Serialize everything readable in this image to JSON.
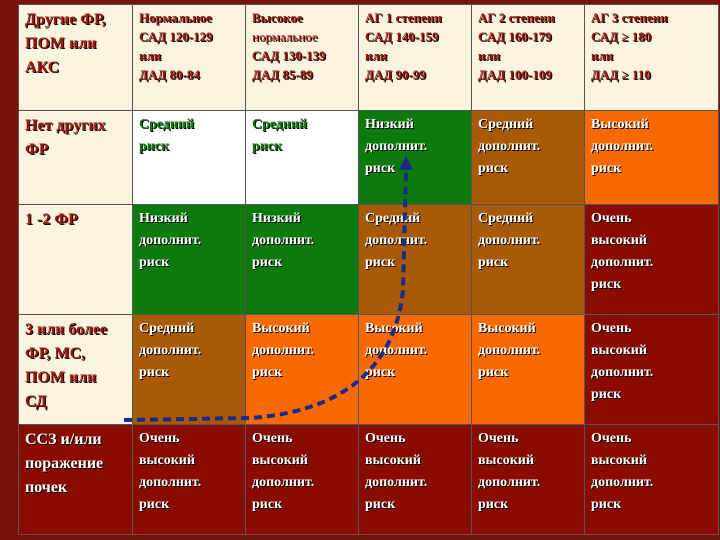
{
  "header": {
    "corner": [
      "Другие ФР,",
      "ПОМ или",
      "АКС"
    ],
    "columns": [
      [
        "Нормальное",
        "САД 120-129",
        "или",
        "ДАД 80-84"
      ],
      [
        "Высокое",
        "нормальное",
        "САД 130-139",
        "ДАД 85-89"
      ],
      [
        "АГ 1 степени",
        "САД 140-159",
        "или",
        "ДАД 90-99"
      ],
      [
        "АГ 2 степени",
        "САД 160-179",
        "или",
        "ДАД 100-109"
      ],
      [
        "АГ 3 степени",
        "САД ≥ 180",
        "или",
        "ДАД ≥ 110"
      ]
    ]
  },
  "rows": [
    {
      "label": [
        "Нет других",
        "ФР"
      ],
      "cells": [
        [
          "Средний",
          "риск"
        ],
        [
          "Средний",
          "риск"
        ],
        [
          "Низкий",
          "дополнит.",
          "риск"
        ],
        [
          "Средний",
          "дополнит.",
          "риск"
        ],
        [
          "Высокий",
          "дополнит.",
          "риск"
        ]
      ]
    },
    {
      "label": [
        "1 -2 ФР"
      ],
      "cells": [
        [
          "Низкий",
          "дополнит.",
          "риск"
        ],
        [
          "Низкий",
          "дополнит.",
          "риск"
        ],
        [
          "Средний",
          "дополнит.",
          "риск"
        ],
        [
          "Средний",
          "дополнит.",
          "риск"
        ],
        [
          "Очень",
          "высокий",
          "дополнит.",
          "риск"
        ]
      ]
    },
    {
      "label": [
        "3 или более",
        "ФР, МС,",
        "ПОМ или",
        "СД"
      ],
      "cells": [
        [
          "Средний",
          "дополнит.",
          "риск"
        ],
        [
          "Высокий",
          "дополнит.",
          "риск"
        ],
        [
          "Высокий",
          "дополнит.",
          "риск"
        ],
        [
          "Высокий",
          "дополнит.",
          "риск"
        ],
        [
          "Очень",
          "высокий",
          "дополнит.",
          "риск"
        ]
      ]
    },
    {
      "label": [
        "ССЗ и/или",
        "поражение",
        "почек"
      ],
      "cells": [
        [
          "Очень",
          "высокий",
          "дополнит.",
          "риск"
        ],
        [
          "Очень",
          "высокий",
          "дополнит.",
          "риск"
        ],
        [
          "Очень",
          "высокий",
          "дополнит.",
          "риск"
        ],
        [
          "Очень",
          "высокий",
          "дополнит.",
          "риск"
        ],
        [
          "Очень",
          "высокий",
          "дополнит.",
          "риск"
        ]
      ]
    }
  ],
  "colors": {
    "green": "#0d7a0d",
    "brown": "#a85a06",
    "orange": "#f86a00",
    "dark_red": "#8a0c00",
    "header_text": "#a0180c",
    "arrow": "#1a2a8a"
  }
}
